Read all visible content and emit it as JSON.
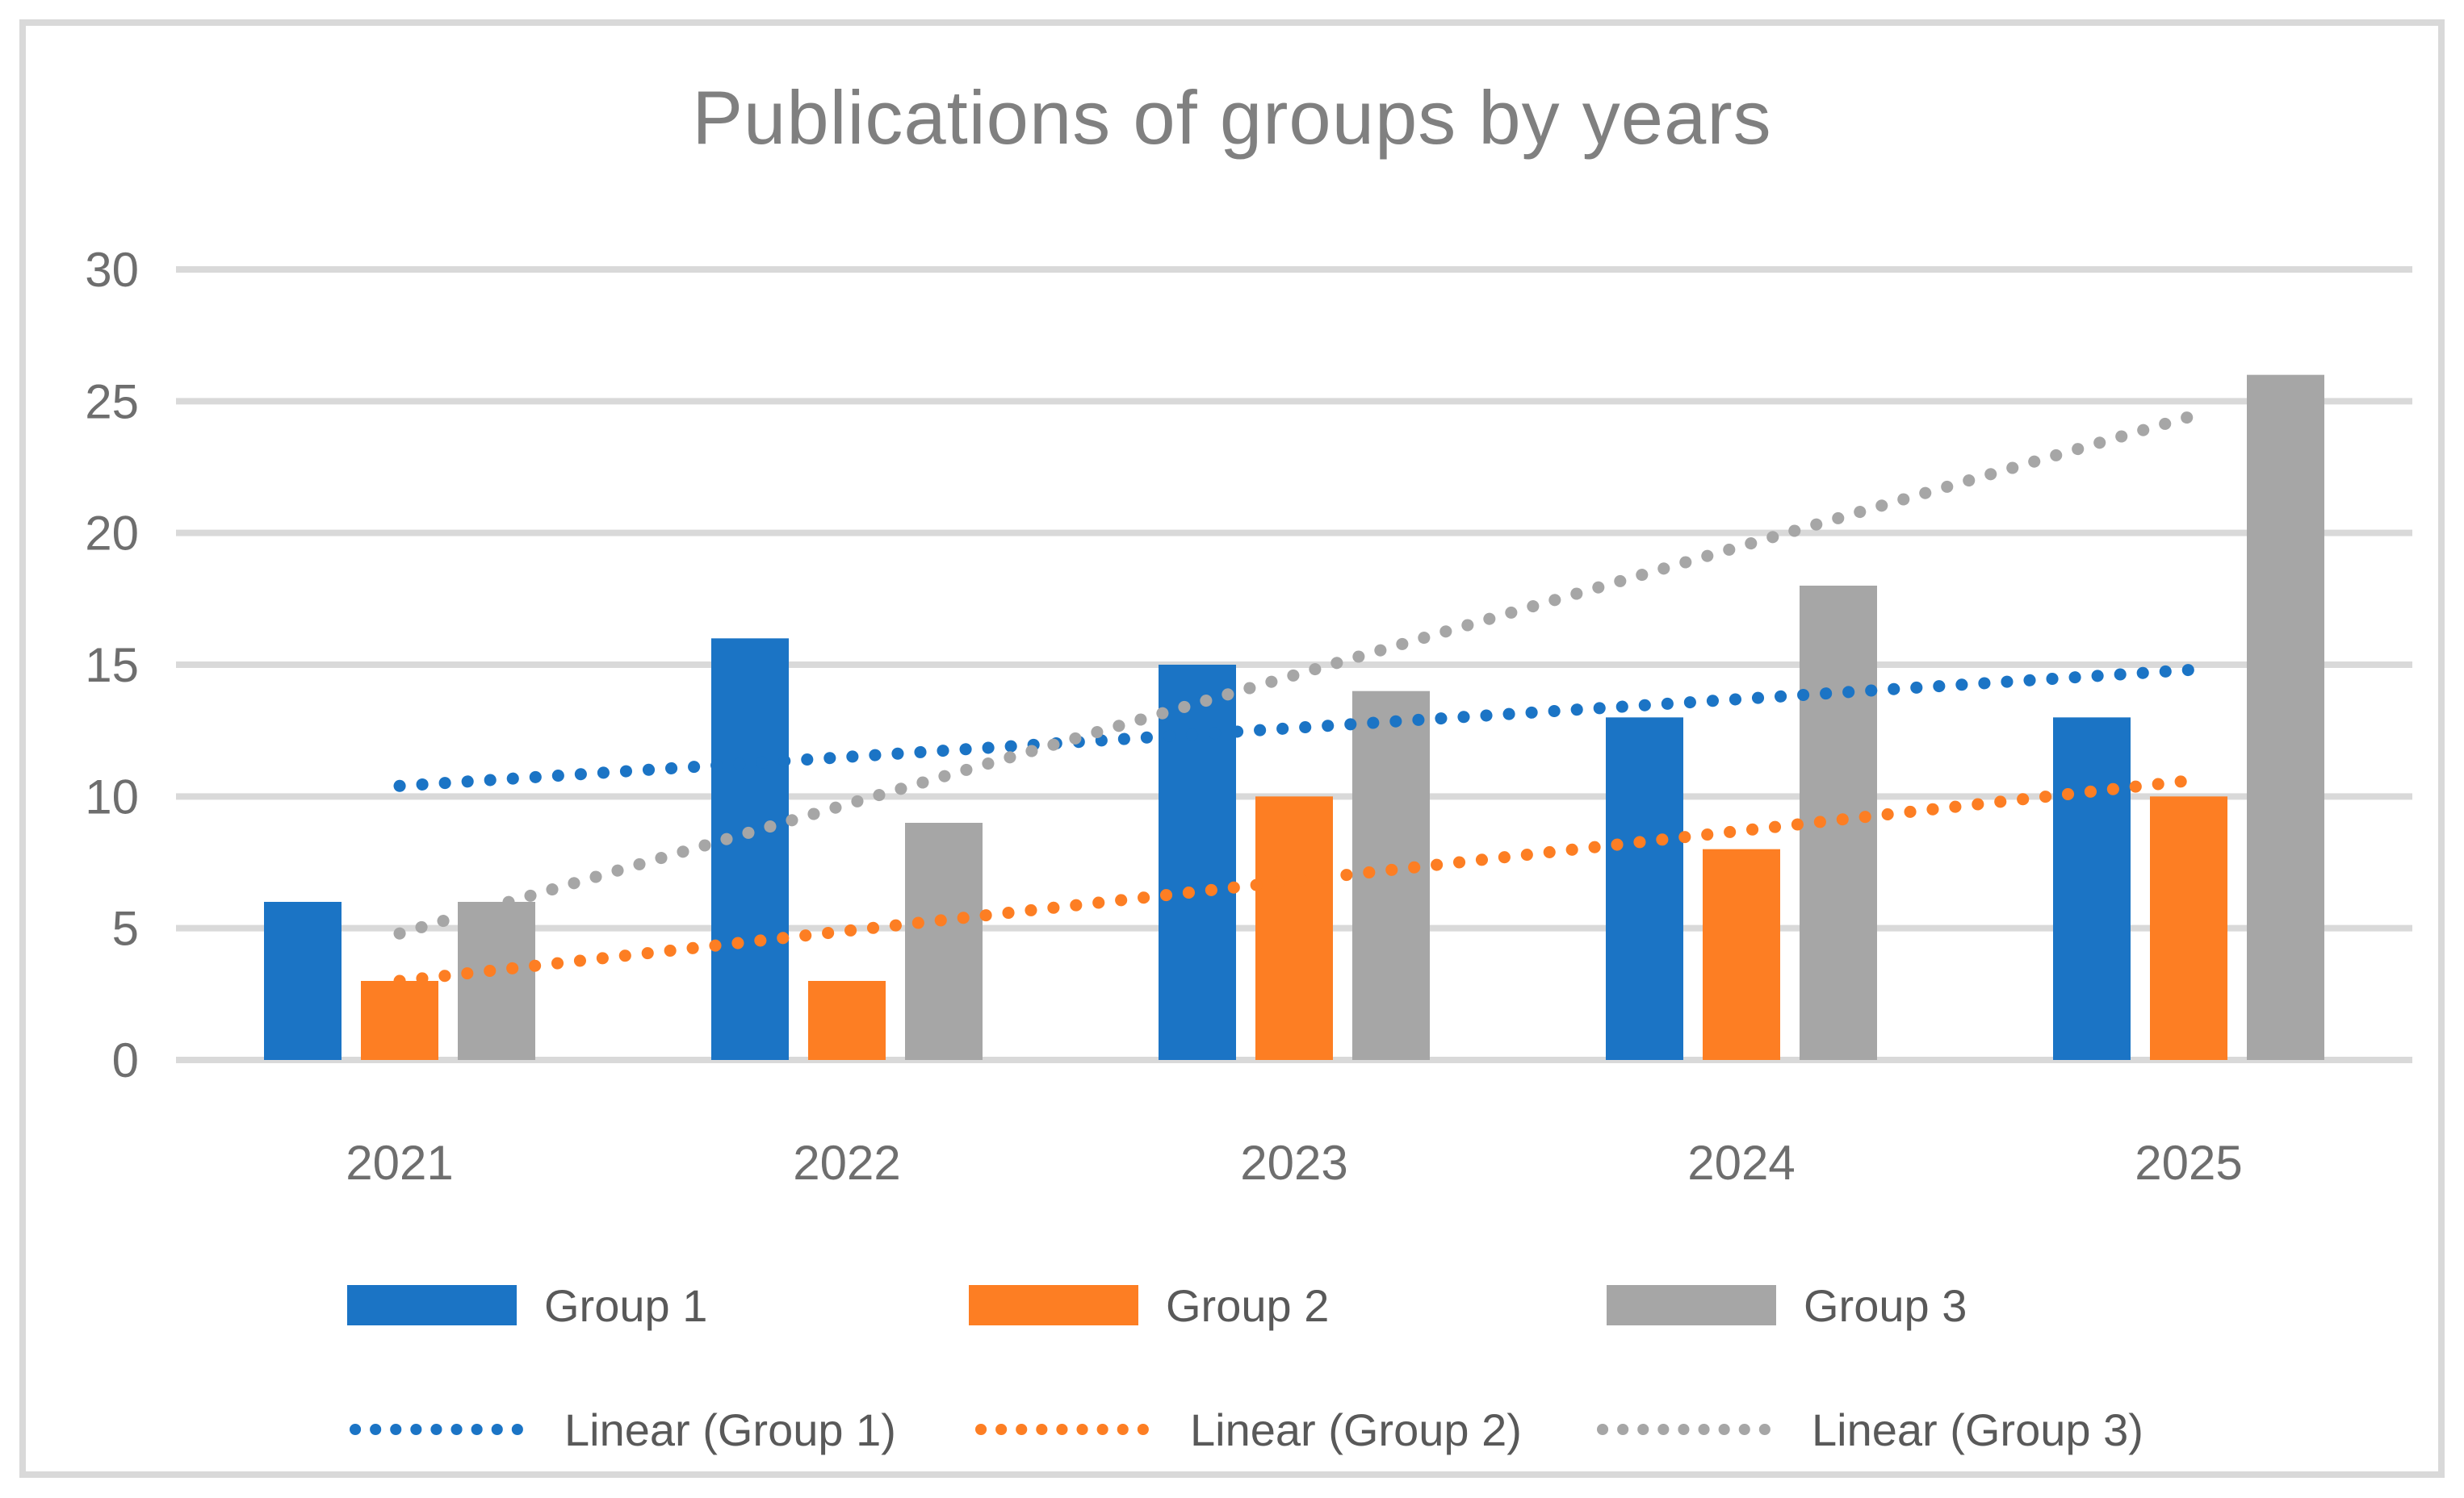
{
  "chart_data": {
    "type": "bar",
    "title": "Publications of groups by years",
    "categories": [
      "2021",
      "2022",
      "2023",
      "2024",
      "2025"
    ],
    "series": [
      {
        "name": "Group 1",
        "color": "#1B74C5",
        "values": [
          6,
          16,
          15,
          13,
          13
        ]
      },
      {
        "name": "Group 2",
        "color": "#FD7E23",
        "values": [
          3,
          3,
          10,
          8,
          10
        ]
      },
      {
        "name": "Group 3",
        "color": "#A6A6A6",
        "values": [
          6,
          9,
          14,
          18,
          26
        ]
      }
    ],
    "trendlines": [
      {
        "name": "Linear (Group 1)",
        "color": "#1B74C5",
        "style": "dotted",
        "start_value": 10.4,
        "end_value": 14.8
      },
      {
        "name": "Linear (Group 2)",
        "color": "#FD7E23",
        "style": "dotted",
        "start_value": 3.0,
        "end_value": 10.6
      },
      {
        "name": "Linear (Group 3)",
        "color": "#A6A6A6",
        "style": "dotted",
        "start_value": 4.8,
        "end_value": 24.4
      }
    ],
    "y_axis": {
      "ticks": [
        0,
        5,
        10,
        15,
        20,
        25,
        30
      ],
      "min": 0,
      "max": 30
    },
    "xlabel": "",
    "ylabel": "",
    "grid": true,
    "legend_position": "bottom",
    "styles": {
      "gridline_color": "#D9D9D9",
      "frame_border_color": "#D9D9D9",
      "axis_label_color": "#6E6E6E",
      "title_color": "#808080",
      "legend_text_color": "#595959",
      "background": "#FFFFFF"
    }
  }
}
